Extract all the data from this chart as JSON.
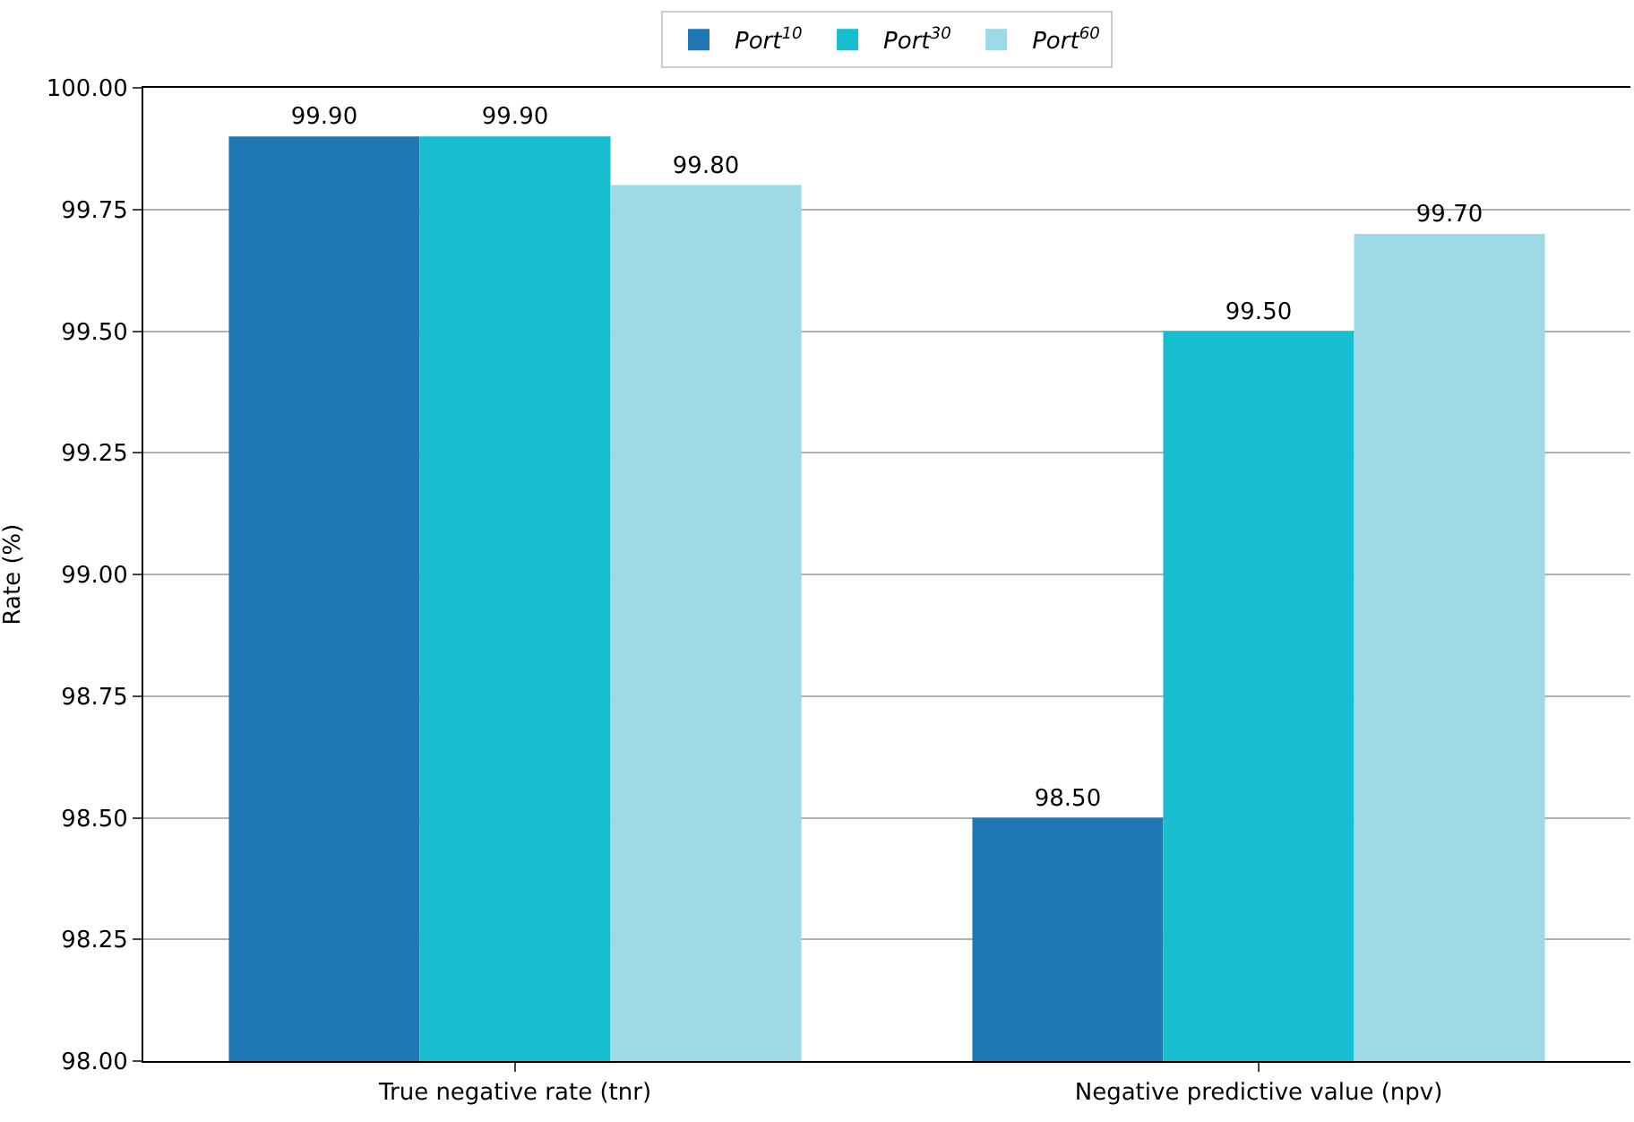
{
  "chart_data": {
    "type": "bar",
    "ylabel": "Rate (%)",
    "categories": [
      "True negative rate (tnr)",
      "Negative predictive value (npv)"
    ],
    "series": [
      {
        "name": "Port$^{10}$",
        "color": "#1f77b4",
        "values": [
          99.9,
          98.5
        ],
        "value_labels": [
          "99.90",
          "98.50"
        ]
      },
      {
        "name": "Port$^{30}$",
        "color": "#17becf",
        "values": [
          99.9,
          99.5
        ],
        "value_labels": [
          "99.90",
          "99.50"
        ]
      },
      {
        "name": "Port$^{60}$",
        "color": "#9edae5",
        "values": [
          99.8,
          99.7
        ],
        "value_labels": [
          "99.80",
          "99.70"
        ]
      }
    ],
    "ylim": [
      98.0,
      100.0
    ],
    "yticks": [
      {
        "value": 98.0,
        "label": "98.00"
      },
      {
        "value": 98.25,
        "label": "98.25"
      },
      {
        "value": 98.5,
        "label": "98.50"
      },
      {
        "value": 98.75,
        "label": "98.75"
      },
      {
        "value": 99.0,
        "label": "99.00"
      },
      {
        "value": 99.25,
        "label": "99.25"
      },
      {
        "value": 99.5,
        "label": "99.50"
      },
      {
        "value": 99.75,
        "label": "99.75"
      },
      {
        "value": 100.0,
        "label": "100.00"
      }
    ],
    "grid": "y",
    "legend": "top"
  }
}
